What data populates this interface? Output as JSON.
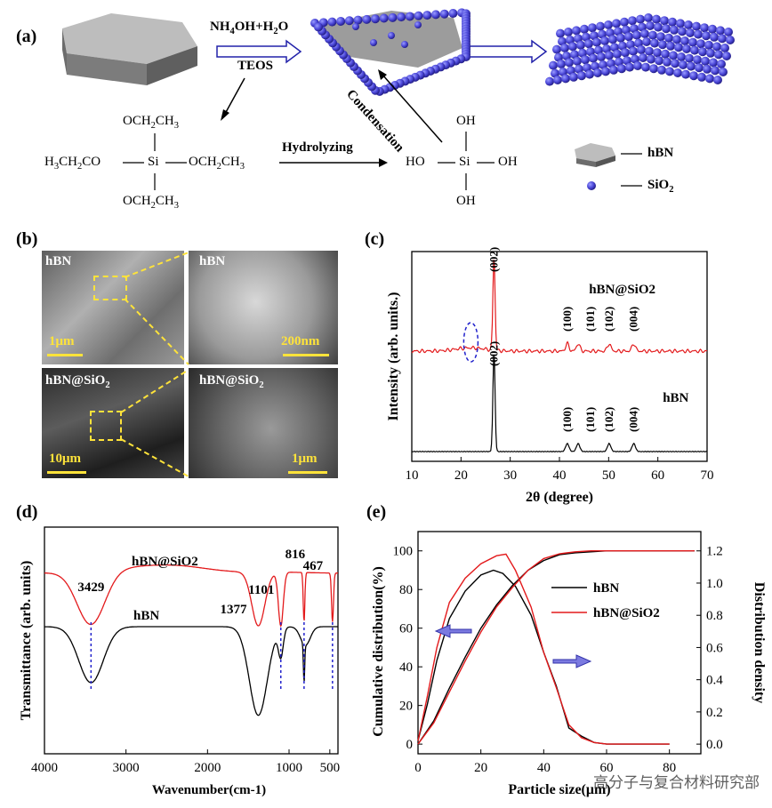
{
  "panels": {
    "a": "(a)",
    "b": "(b)",
    "c": "(c)",
    "d": "(d)",
    "e": "(e)"
  },
  "schematic": {
    "reagent_top": "NH4OH+H2O",
    "reagent_bottom": "TEOS",
    "condensation": "Condensation",
    "hydrolyzing": "Hydrolyzing",
    "teos": {
      "top": "OCH2CH3",
      "left": "H3CH2CO",
      "center": "Si",
      "right": "OCH2CH3",
      "bottom": "OCH2CH3"
    },
    "silanol": {
      "top": "OH",
      "left": "HO",
      "center": "Si",
      "right": "OH",
      "bottom": "OH"
    },
    "legend": [
      {
        "label": "hBN"
      },
      {
        "label": "SiO2"
      }
    ]
  },
  "sem": {
    "images": [
      {
        "label": "hBN",
        "scale": "1μm"
      },
      {
        "label": "hBN",
        "scale": "200nm"
      },
      {
        "label": "hBN@SiO2",
        "scale": "10μm"
      },
      {
        "label": "hBN@SiO2",
        "scale": "1μm"
      }
    ]
  },
  "chart_data": [
    {
      "id": "xrd",
      "type": "line",
      "xlabel": "2θ (degree)",
      "ylabel": "Intensity (arb. units.)",
      "xlim": [
        10,
        70
      ],
      "xticks": [
        10,
        20,
        30,
        40,
        50,
        60,
        70
      ],
      "series": [
        {
          "name": "hBN@SiO2",
          "color": "#e31a1c",
          "peaks": [
            {
              "x": 26.7,
              "label": "(002)"
            },
            {
              "x": 41.6,
              "label": "(100)"
            },
            {
              "x": 43.8,
              "label": "(101)"
            },
            {
              "x": 50.1,
              "label": "(102)"
            },
            {
              "x": 55.1,
              "label": "(004)"
            }
          ],
          "amorphous_hump": 22
        },
        {
          "name": "hBN",
          "color": "#000000",
          "peaks": [
            {
              "x": 26.7,
              "label": "(002)"
            },
            {
              "x": 41.6,
              "label": "(100)"
            },
            {
              "x": 43.8,
              "label": "(101)"
            },
            {
              "x": 50.1,
              "label": "(102)"
            },
            {
              "x": 55.1,
              "label": "(004)"
            }
          ]
        }
      ]
    },
    {
      "id": "ftir",
      "type": "line",
      "xlabel": "Wavenumber(cm-1)",
      "ylabel": "Transmittance (arb. units)",
      "xlim": [
        4000,
        400
      ],
      "xticks": [
        4000,
        3000,
        2000,
        1000,
        500
      ],
      "series": [
        {
          "name": "hBN@SiO2",
          "color": "#e31a1c"
        },
        {
          "name": "hBN",
          "color": "#000000"
        }
      ],
      "annotations": [
        "3429",
        "1377",
        "1101",
        "816",
        "467"
      ]
    },
    {
      "id": "psd",
      "type": "line",
      "xlabel": "Particle size(μm)",
      "ylabel": "Cumulative distribution(%)",
      "ylabel_right": "Distribution density",
      "xlim": [
        0,
        90
      ],
      "xticks": [
        0,
        20,
        40,
        60,
        80
      ],
      "ylim": [
        -5,
        110
      ],
      "yticks": [
        0,
        20,
        40,
        60,
        80,
        100
      ],
      "ylim_right": [
        -0.06,
        1.32
      ],
      "yticks_right": [
        "0.0",
        "0.2",
        "0.4",
        "0.6",
        "0.8",
        "1.0",
        "1.2"
      ],
      "series": [
        {
          "name": "hBN",
          "color": "#000000",
          "cumulative": {
            "x": [
              0,
              5,
              10,
              15,
              20,
              25,
              30,
              35,
              40,
              45,
              50,
              55,
              60,
              70,
              80,
              88
            ],
            "y": [
              0,
              12,
              29,
              45,
              60,
              72,
              82,
              90,
              95,
              98,
              99,
              99.5,
              100,
              100,
              100,
              100
            ]
          },
          "density": {
            "x": [
              0,
              3,
              6,
              10,
              15,
              20,
              24,
              27,
              31,
              36,
              40,
              44,
              48,
              52,
              56,
              60,
              70,
              80
            ],
            "y": [
              0.02,
              0.25,
              0.52,
              0.78,
              0.95,
              1.05,
              1.08,
              1.06,
              0.98,
              0.8,
              0.57,
              0.36,
              0.1,
              0.05,
              0.01,
              0,
              0,
              0
            ]
          }
        },
        {
          "name": "hBN@SiO2",
          "color": "#e31a1c",
          "cumulative": {
            "x": [
              0,
              5,
              10,
              15,
              20,
              25,
              30,
              35,
              40,
              45,
              50,
              55,
              60,
              70,
              80,
              88
            ],
            "y": [
              0,
              11,
              27,
              43,
              58,
              71,
              81,
              90,
              96,
              98.5,
              99.5,
              100,
              100,
              100,
              100,
              100
            ]
          },
          "density": {
            "x": [
              0,
              3,
              6,
              10,
              15,
              20,
              25,
              28,
              31,
              36,
              40,
              44,
              48,
              52,
              56,
              60,
              70,
              80
            ],
            "y": [
              0.02,
              0.3,
              0.6,
              0.88,
              1.03,
              1.12,
              1.17,
              1.18,
              1.08,
              0.85,
              0.57,
              0.35,
              0.12,
              0.04,
              0.01,
              0,
              0,
              0
            ]
          }
        }
      ]
    }
  ],
  "watermark": "高分子与复合材料研究部"
}
